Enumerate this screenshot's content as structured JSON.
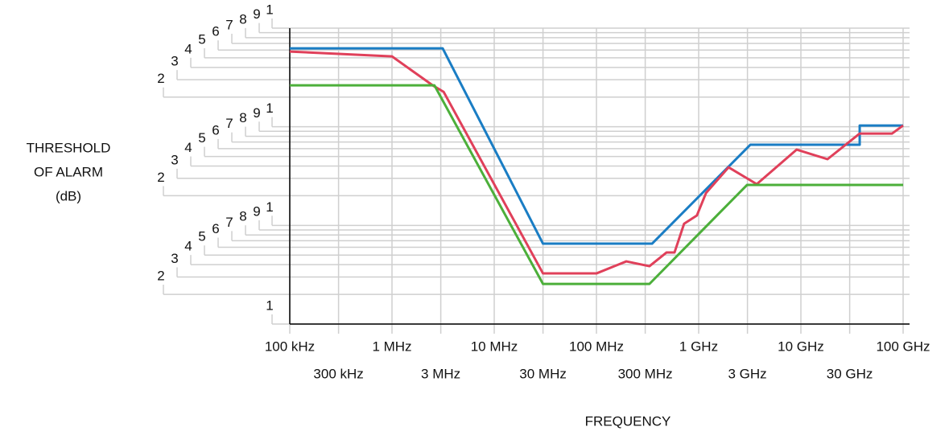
{
  "chart_data": {
    "type": "line",
    "ylabel": [
      "THRESHOLD",
      "OF ALARM",
      "(dB)"
    ],
    "xlabel": "FREQUENCY",
    "xlog": true,
    "ylog": true,
    "grid": true,
    "xlim": [
      100000,
      100000000000
    ],
    "ylim": [
      1,
      1000
    ],
    "xticks": [
      {
        "value": 100000,
        "label": "100 kHz"
      },
      {
        "value": 300000,
        "label": "300 kHz"
      },
      {
        "value": 1000000,
        "label": "1 MHz"
      },
      {
        "value": 3000000,
        "label": "3 MHz"
      },
      {
        "value": 10000000,
        "label": "10 MHz"
      },
      {
        "value": 30000000,
        "label": "30 MHz"
      },
      {
        "value": 100000000,
        "label": "100 MHz"
      },
      {
        "value": 300000000,
        "label": "300 MHz"
      },
      {
        "value": 1000000000,
        "label": "1 GHz"
      },
      {
        "value": 3000000000,
        "label": "3 GHz"
      },
      {
        "value": 10000000000,
        "label": "10 GHz"
      },
      {
        "value": 30000000000,
        "label": "30 GHz"
      },
      {
        "value": 100000000000,
        "label": "100 GHz"
      }
    ],
    "yticks": [
      1,
      2,
      3,
      4,
      5,
      6,
      7,
      8,
      9,
      {
        "value": 10,
        "label": "1"
      },
      {
        "value": 20,
        "label": "2"
      },
      {
        "value": 30,
        "label": "3"
      },
      {
        "value": 40,
        "label": "4"
      },
      {
        "value": 50,
        "label": "5"
      },
      {
        "value": 60,
        "label": "6"
      },
      {
        "value": 70,
        "label": "7"
      },
      {
        "value": 80,
        "label": "8"
      },
      {
        "value": 90,
        "label": "9"
      },
      {
        "value": 100,
        "label": "1"
      },
      {
        "value": 200,
        "label": "2"
      },
      {
        "value": 300,
        "label": "3"
      },
      {
        "value": 400,
        "label": "4"
      },
      {
        "value": 500,
        "label": "5"
      },
      {
        "value": 600,
        "label": "6"
      },
      {
        "value": 700,
        "label": "7"
      },
      {
        "value": 800,
        "label": "8"
      },
      {
        "value": 900,
        "label": "9"
      },
      {
        "value": 1000,
        "label": "1"
      }
    ],
    "series": [
      {
        "color": "#1a7dc4",
        "x": [
          100000,
          3130000,
          30000000,
          350000000,
          3200000000,
          37600000000,
          37600000000,
          100000000000
        ],
        "values": [
          624,
          624,
          6.53,
          6.53,
          65.7,
          65.7,
          103,
          103
        ]
      },
      {
        "color": "#e0405a",
        "x": [
          100000,
          1000000,
          2500000,
          3200000,
          30000000,
          100000000,
          196000000,
          330000000,
          484000000,
          580000000,
          720000000,
          960000000,
          1180000000,
          1960000000,
          3700000000,
          9100000000,
          18200000000,
          37600000000,
          78000000000,
          100000000000
        ],
        "values": [
          579,
          517,
          263,
          226,
          3.26,
          3.26,
          4.32,
          3.86,
          5.31,
          5.31,
          10.4,
          12.6,
          21.3,
          38.8,
          26.2,
          58.7,
          46.9,
          85.4,
          85.4,
          103
        ]
      },
      {
        "color": "#4caf3a",
        "x": [
          100000,
          2600000,
          30000000,
          330000000,
          2970000000,
          100000000000
        ],
        "values": [
          263,
          263,
          2.55,
          2.55,
          25.7,
          25.7
        ]
      }
    ]
  }
}
